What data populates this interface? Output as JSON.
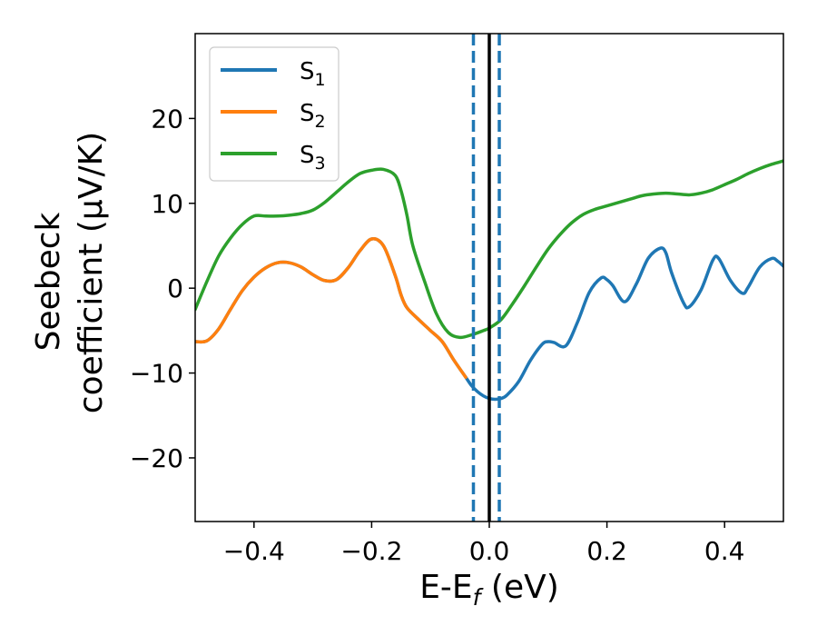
{
  "chart_data": {
    "type": "line",
    "xlabel": {
      "main": "E-E",
      "sub": "f",
      "unit": " (eV)"
    },
    "ylabel": {
      "line1": "Seebeck",
      "line2": "coefficient  (μV/K)"
    },
    "xlim": [
      -0.5,
      0.5
    ],
    "ylim": [
      -27.5,
      30
    ],
    "xticks": [
      {
        "value": -0.4,
        "label": "−0.4"
      },
      {
        "value": -0.2,
        "label": "−0.2"
      },
      {
        "value": 0.0,
        "label": "0.0"
      },
      {
        "value": 0.2,
        "label": "0.2"
      },
      {
        "value": 0.4,
        "label": "0.4"
      }
    ],
    "yticks": [
      {
        "value": -20,
        "label": "−20"
      },
      {
        "value": -10,
        "label": "−10"
      },
      {
        "value": 0,
        "label": "0"
      },
      {
        "value": 10,
        "label": "10"
      },
      {
        "value": 20,
        "label": "20"
      }
    ],
    "grid": false,
    "legend_position": "top-left",
    "vlines": [
      {
        "x": -0.027,
        "style": "dashed",
        "color": "#1f77b4"
      },
      {
        "x": 0.0,
        "style": "solid",
        "color": "#000000"
      },
      {
        "x": 0.017,
        "style": "dashed",
        "color": "#1f77b4"
      }
    ],
    "series": [
      {
        "name": "S",
        "sub": "1",
        "color": "#1f77b4",
        "x": [
          -0.5,
          -0.48,
          -0.46,
          -0.44,
          -0.42,
          -0.4,
          -0.38,
          -0.36,
          -0.34,
          -0.32,
          -0.3,
          -0.28,
          -0.26,
          -0.24,
          -0.22,
          -0.2,
          -0.18,
          -0.16,
          -0.15,
          -0.14,
          -0.12,
          -0.1,
          -0.08,
          -0.06,
          -0.04,
          -0.03,
          -0.02,
          -0.01,
          0.0,
          0.01,
          0.02,
          0.03,
          0.05,
          0.07,
          0.09,
          0.1,
          0.11,
          0.13,
          0.15,
          0.17,
          0.19,
          0.2,
          0.21,
          0.23,
          0.25,
          0.27,
          0.29,
          0.3,
          0.31,
          0.33,
          0.34,
          0.36,
          0.38,
          0.39,
          0.41,
          0.43,
          0.44,
          0.46,
          0.48,
          0.49,
          0.5
        ],
        "y": [
          -6.3,
          -6.2,
          -4.8,
          -2.5,
          -0.3,
          1.3,
          2.4,
          3.0,
          3.0,
          2.5,
          1.6,
          0.9,
          1.0,
          2.4,
          4.4,
          5.8,
          5.0,
          1.5,
          -0.8,
          -2.3,
          -3.7,
          -5.0,
          -6.3,
          -8.5,
          -10.5,
          -11.5,
          -12.2,
          -12.7,
          -13.0,
          -13.1,
          -13.0,
          -12.6,
          -11.0,
          -8.5,
          -6.6,
          -6.3,
          -6.4,
          -6.8,
          -4.0,
          -0.5,
          1.2,
          1.0,
          0.3,
          -1.6,
          0.5,
          3.5,
          4.7,
          4.2,
          1.8,
          -1.7,
          -2.2,
          -0.2,
          3.3,
          3.5,
          0.9,
          -0.6,
          0.1,
          2.5,
          3.5,
          3.2,
          2.6
        ]
      },
      {
        "name": "S",
        "sub": "2",
        "color": "#ff7f0e",
        "x": [
          -0.5,
          -0.48,
          -0.46,
          -0.44,
          -0.42,
          -0.4,
          -0.38,
          -0.36,
          -0.34,
          -0.32,
          -0.3,
          -0.28,
          -0.26,
          -0.24,
          -0.22,
          -0.2,
          -0.18,
          -0.16,
          -0.15,
          -0.14,
          -0.12,
          -0.1,
          -0.08,
          -0.06,
          -0.04
        ],
        "y": [
          -6.3,
          -6.2,
          -4.8,
          -2.5,
          -0.3,
          1.3,
          2.4,
          3.0,
          3.0,
          2.5,
          1.6,
          0.9,
          1.0,
          2.4,
          4.4,
          5.8,
          5.0,
          1.5,
          -0.8,
          -2.3,
          -3.7,
          -5.0,
          -6.3,
          -8.5,
          -10.5
        ]
      },
      {
        "name": "S",
        "sub": "3",
        "color": "#2ca02c",
        "x": [
          -0.5,
          -0.48,
          -0.46,
          -0.44,
          -0.42,
          -0.4,
          -0.38,
          -0.36,
          -0.34,
          -0.32,
          -0.3,
          -0.28,
          -0.26,
          -0.24,
          -0.22,
          -0.2,
          -0.18,
          -0.16,
          -0.15,
          -0.14,
          -0.13,
          -0.11,
          -0.09,
          -0.07,
          -0.05,
          -0.03,
          -0.01,
          0.0,
          0.02,
          0.04,
          0.06,
          0.08,
          0.1,
          0.12,
          0.14,
          0.16,
          0.18,
          0.2,
          0.22,
          0.24,
          0.26,
          0.28,
          0.3,
          0.32,
          0.34,
          0.36,
          0.38,
          0.4,
          0.42,
          0.44,
          0.46,
          0.48,
          0.5
        ],
        "y": [
          -2.5,
          0.8,
          3.8,
          5.9,
          7.5,
          8.5,
          8.5,
          8.5,
          8.6,
          8.8,
          9.2,
          10.1,
          11.3,
          12.5,
          13.5,
          13.9,
          14.0,
          13.3,
          11.5,
          8.6,
          5.0,
          0.8,
          -3.0,
          -5.2,
          -5.8,
          -5.5,
          -5.0,
          -4.7,
          -3.7,
          -1.8,
          0.3,
          2.5,
          4.6,
          6.3,
          7.7,
          8.7,
          9.3,
          9.7,
          10.1,
          10.5,
          10.9,
          11.1,
          11.2,
          11.1,
          11.0,
          11.2,
          11.6,
          12.2,
          12.8,
          13.5,
          14.1,
          14.6,
          15.0
        ]
      }
    ]
  }
}
